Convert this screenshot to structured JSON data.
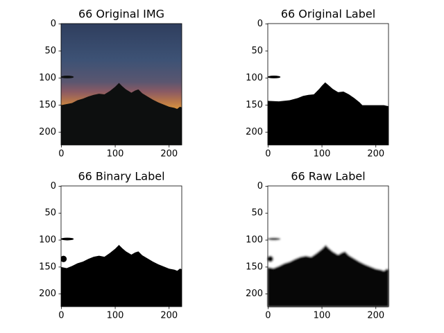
{
  "chart_data": [
    {
      "type": "image",
      "title": "66 Original IMG",
      "xlim": [
        -0.5,
        223.5
      ],
      "ylim": [
        223.5,
        -0.5
      ],
      "xticks": [
        0,
        100,
        200
      ],
      "yticks": [
        0,
        50,
        100,
        150,
        200
      ]
    },
    {
      "type": "image",
      "title": "66 Original Label",
      "xlim": [
        -0.5,
        223.5
      ],
      "ylim": [
        223.5,
        -0.5
      ],
      "xticks": [
        0,
        100,
        200
      ],
      "yticks": [
        0,
        50,
        100,
        150,
        200
      ]
    },
    {
      "type": "image",
      "title": "66 Binary Label",
      "xlim": [
        -0.5,
        223.5
      ],
      "ylim": [
        223.5,
        -0.5
      ],
      "xticks": [
        0,
        100,
        200
      ],
      "yticks": [
        0,
        50,
        100,
        150,
        200
      ]
    },
    {
      "type": "image",
      "title": "66 Raw Label",
      "xlim": [
        -0.5,
        223.5
      ],
      "ylim": [
        223.5,
        -0.5
      ],
      "xticks": [
        0,
        100,
        200
      ],
      "yticks": [
        0,
        50,
        100,
        150,
        200
      ]
    }
  ]
}
